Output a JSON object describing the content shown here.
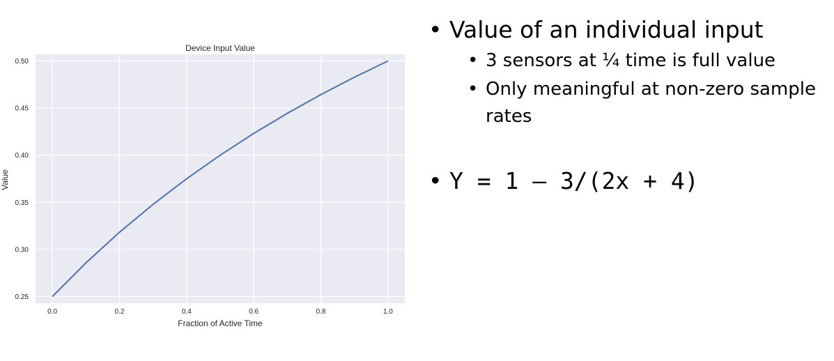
{
  "chart_data": {
    "type": "line",
    "title": "Device Input Value",
    "xlabel": "Fraction of Active Time",
    "ylabel": "Value",
    "xlim": [
      -0.05,
      1.05
    ],
    "ylim": [
      0.243,
      0.507
    ],
    "x_ticks": [
      0.0,
      0.2,
      0.4,
      0.6,
      0.8,
      1.0
    ],
    "x_tick_labels": [
      "0.0",
      "0.2",
      "0.4",
      "0.6",
      "0.8",
      "1.0"
    ],
    "y_ticks": [
      0.25,
      0.3,
      0.35,
      0.4,
      0.45,
      0.5
    ],
    "y_tick_labels": [
      "0.25",
      "0.30",
      "0.35",
      "0.40",
      "0.45",
      "0.50"
    ],
    "grid": true,
    "background": "#eaeaf2",
    "line_color": "#4c72b0",
    "series": [
      {
        "x": [
          0.0,
          0.1,
          0.2,
          0.3,
          0.4,
          0.5,
          0.6,
          0.7,
          0.8,
          0.9,
          1.0
        ],
        "values": [
          0.25,
          0.2857,
          0.3182,
          0.3478,
          0.375,
          0.4,
          0.4231,
          0.4444,
          0.4643,
          0.4828,
          0.5
        ]
      }
    ]
  },
  "slide": {
    "bullets": [
      {
        "text": "Value of an individual input",
        "subs": [
          "3 sensors at ¼ time is full value",
          "Only meaningful at non-zero sample rates"
        ]
      }
    ],
    "formula": "Y = 1 – 3/(2x + 4)",
    "bullet_char": "•"
  }
}
